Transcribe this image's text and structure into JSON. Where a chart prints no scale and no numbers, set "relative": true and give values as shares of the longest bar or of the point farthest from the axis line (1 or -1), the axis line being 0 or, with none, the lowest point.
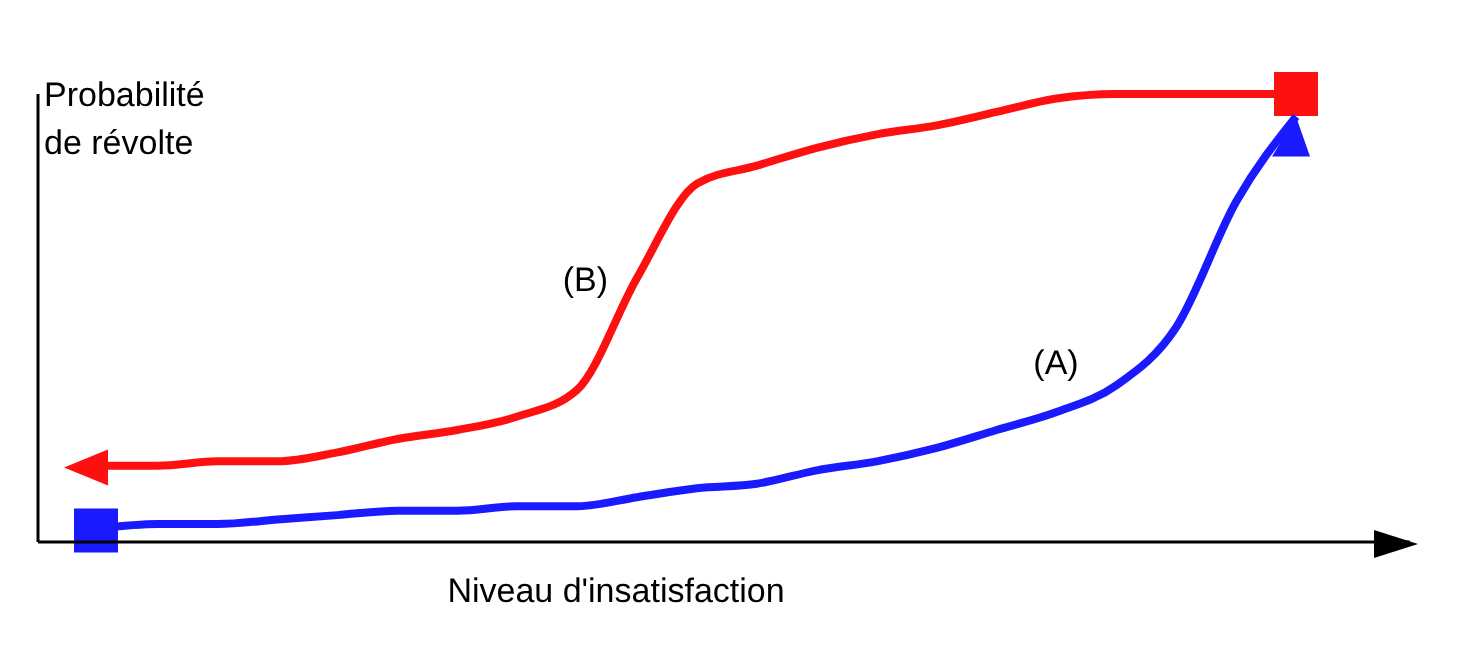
{
  "chart_data": {
    "type": "line",
    "relative": true,
    "xlabel": "Niveau d'insatisfaction",
    "ylabel": "Probabilité\nde révolte",
    "categories": [
      null,
      null,
      null,
      null,
      null,
      null,
      null,
      null,
      null,
      null,
      null,
      null,
      null,
      null,
      null,
      null,
      null,
      null,
      null,
      null,
      null
    ],
    "series": [
      {
        "name": "(A)",
        "color": "#1a1aff",
        "values": [
          0.03,
          0.04,
          0.04,
          0.05,
          0.06,
          0.07,
          0.07,
          0.08,
          0.08,
          0.1,
          0.12,
          0.13,
          0.16,
          0.18,
          0.21,
          0.25,
          0.29,
          0.35,
          0.48,
          0.76,
          0.95
        ]
      },
      {
        "name": "(B)",
        "color": "#ff1010",
        "values": [
          0.17,
          0.17,
          0.18,
          0.18,
          0.2,
          0.23,
          0.25,
          0.28,
          0.34,
          0.59,
          0.8,
          0.84,
          0.88,
          0.91,
          0.93,
          0.96,
          0.99,
          1,
          1,
          1,
          1
        ]
      }
    ]
  }
}
